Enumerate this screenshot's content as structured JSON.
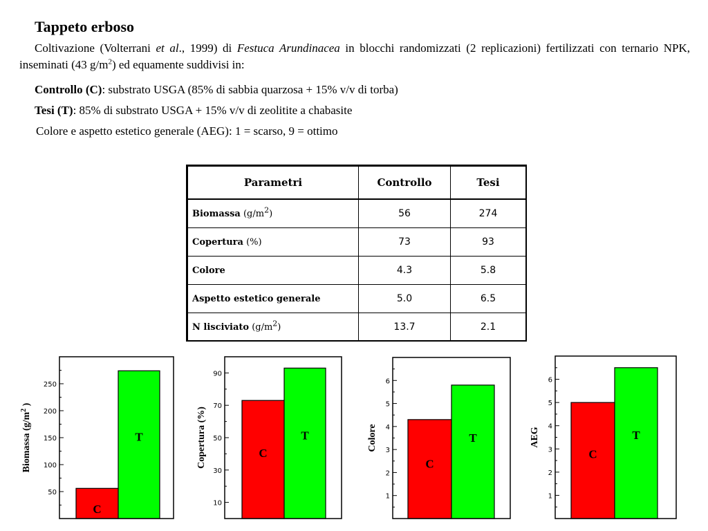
{
  "document": {
    "title": "Tappeto erboso",
    "intro": {
      "text_a": "Coltivazione (Volterrani ",
      "text_italic_a": "et al",
      "text_b": "., 1999) di ",
      "text_italic_b": "Festuca Arundinacea",
      "text_c": " in blocchi randomizzati (2 replicazioni) fertilizzati con ternario NPK, inseminati (43 g/m",
      "sup": "2",
      "text_d": ") ed equamente suddivisi in:"
    },
    "controllo": {
      "label": "Controllo (C)",
      "text": ": substrato USGA (85% di sabbia quarzosa + 15% v/v di torba)"
    },
    "tesi": {
      "label": "Tesi (T)",
      "text": ": 85% di substrato USGA + 15% v/v di zeolitite a chabasite"
    },
    "colore_note": "Colore e aspetto estetico generale (AEG): 1 = scarso, 9 = ottimo"
  },
  "table": {
    "headers": [
      "Parametri",
      "Controllo",
      "Tesi"
    ],
    "rows": [
      {
        "name": "Biomassa",
        "unit": " (g/m",
        "sup": "2",
        "unit_end": ")",
        "controllo": "56",
        "tesi": "274"
      },
      {
        "name": "Copertura",
        "unit": " (%)",
        "sup": "",
        "unit_end": "",
        "controllo": "73",
        "tesi": "93"
      },
      {
        "name": "Colore",
        "unit": "",
        "sup": "",
        "unit_end": "",
        "controllo": "4.3",
        "tesi": "5.8"
      },
      {
        "name": "Aspetto estetico generale",
        "unit": "",
        "sup": "",
        "unit_end": "",
        "controllo": "5.0",
        "tesi": "6.5"
      },
      {
        "name": "N lisciviato",
        "unit": " (g/m",
        "sup": "2",
        "unit_end": ")",
        "controllo": "13.7",
        "tesi": "2.1"
      }
    ]
  },
  "colors": {
    "controllo": "#ff0000",
    "tesi": "#00ff00"
  },
  "chart_data": [
    {
      "type": "bar",
      "categories": [
        "C",
        "T"
      ],
      "values": [
        56,
        274
      ],
      "ylabel": "Biomassa (g/m",
      "ylabel_sup": "2",
      "ylabel_end": " )",
      "ylim": [
        0,
        300
      ],
      "yticks": [
        50,
        100,
        150,
        200,
        250
      ],
      "grid": false
    },
    {
      "type": "bar",
      "categories": [
        "C",
        "T"
      ],
      "values": [
        73,
        93
      ],
      "ylabel": "Copertura (%)",
      "ylabel_sup": "",
      "ylabel_end": "",
      "ylim": [
        0,
        100
      ],
      "yticks": [
        10,
        30,
        50,
        70,
        90
      ],
      "grid": false
    },
    {
      "type": "bar",
      "categories": [
        "C",
        "T"
      ],
      "values": [
        4.3,
        5.8
      ],
      "ylabel": "Colore",
      "ylabel_sup": "",
      "ylabel_end": "",
      "ylim": [
        0,
        7
      ],
      "yticks": [
        1,
        2,
        3,
        4,
        5,
        6
      ],
      "grid": false
    },
    {
      "type": "bar",
      "categories": [
        "C",
        "T"
      ],
      "values": [
        5.0,
        6.5
      ],
      "ylabel": "AEG",
      "ylabel_sup": "",
      "ylabel_end": "",
      "ylim": [
        0,
        7
      ],
      "yticks": [
        1,
        2,
        3,
        4,
        5,
        6
      ],
      "grid": false
    }
  ]
}
